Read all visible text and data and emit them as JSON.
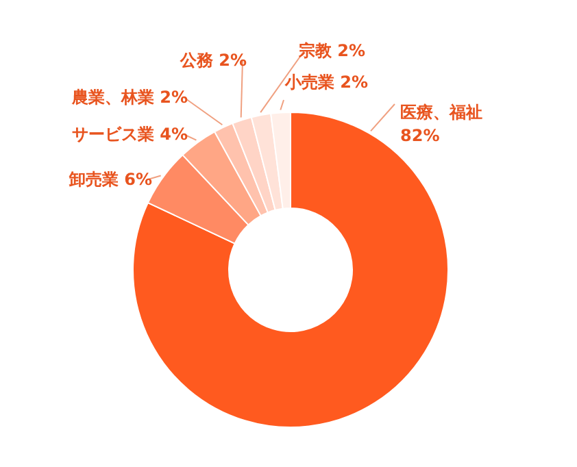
{
  "chart_data": {
    "type": "donut",
    "categories": [
      "医療、福祉",
      "卸売業",
      "サービス業",
      "農業、林業",
      "公務",
      "宗教",
      "小売業"
    ],
    "values": [
      82,
      6,
      4,
      2,
      2,
      2,
      2
    ],
    "value_labels": [
      "82%",
      "6%",
      "4%",
      "2%",
      "2%",
      "2%",
      "2%"
    ],
    "colors": [
      "#ff5a1f",
      "#ff8a63",
      "#ffa685",
      "#ffc2ad",
      "#ffd4c6",
      "#ffe2d8",
      "#ffefe9"
    ]
  }
}
